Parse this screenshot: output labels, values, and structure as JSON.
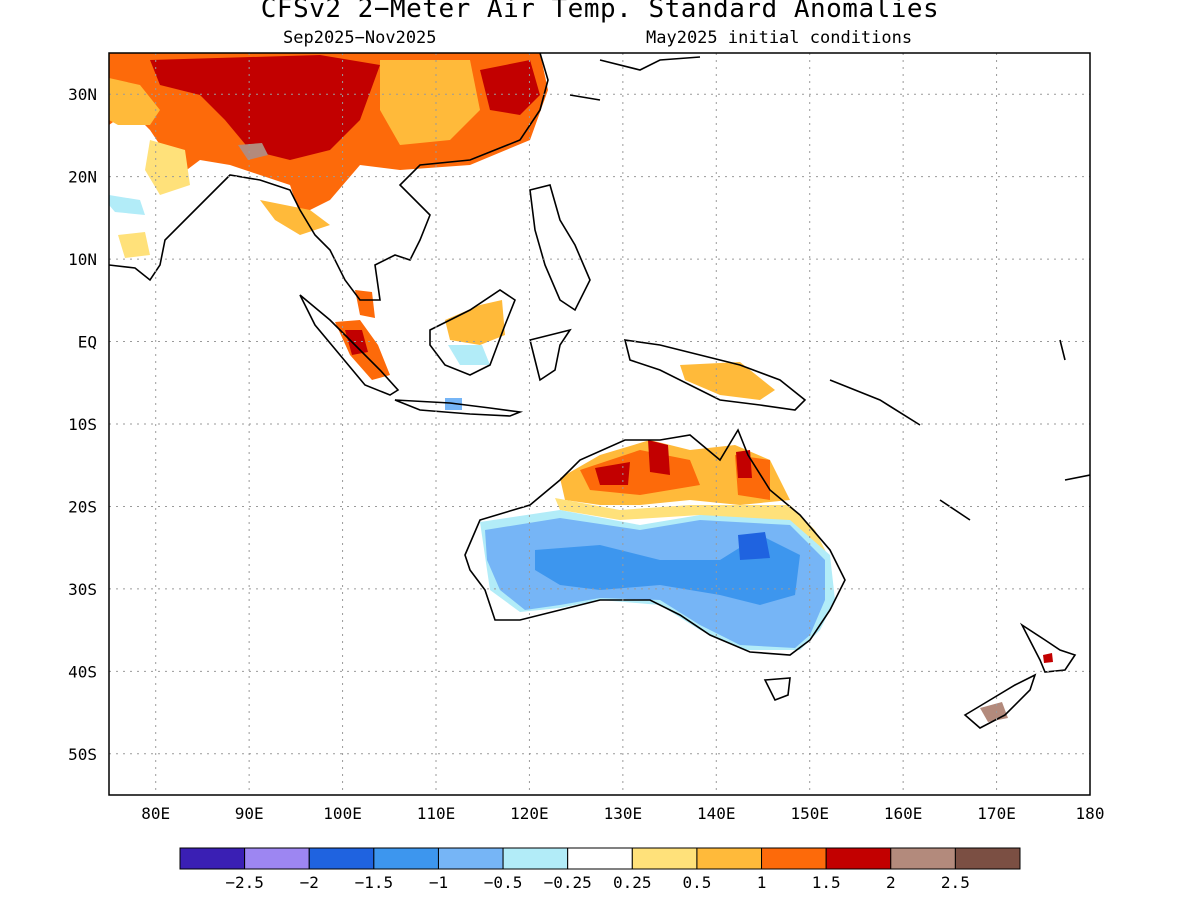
{
  "title": "CFSv2 2−Meter Air Temp. Standard Anomalies",
  "subtitle_left": "Sep2025−Nov2025",
  "subtitle_right": "May2025 initial conditions",
  "map": {
    "lon_range": [
      75,
      180
    ],
    "lat_range": [
      -55,
      35
    ],
    "grid": true,
    "lon_ticks": [
      {
        "value": 80,
        "label": "80E"
      },
      {
        "value": 90,
        "label": "90E"
      },
      {
        "value": 100,
        "label": "100E"
      },
      {
        "value": 110,
        "label": "110E"
      },
      {
        "value": 120,
        "label": "120E"
      },
      {
        "value": 130,
        "label": "130E"
      },
      {
        "value": 140,
        "label": "140E"
      },
      {
        "value": 150,
        "label": "150E"
      },
      {
        "value": 160,
        "label": "160E"
      },
      {
        "value": 170,
        "label": "170E"
      },
      {
        "value": 180,
        "label": "180"
      }
    ],
    "lat_ticks": [
      {
        "value": 30,
        "label": "30N"
      },
      {
        "value": 20,
        "label": "20N"
      },
      {
        "value": 10,
        "label": "10N"
      },
      {
        "value": 0,
        "label": "EQ"
      },
      {
        "value": -10,
        "label": "10S"
      },
      {
        "value": -20,
        "label": "20S"
      },
      {
        "value": -30,
        "label": "30S"
      },
      {
        "value": -40,
        "label": "40S"
      },
      {
        "value": -50,
        "label": "50S"
      }
    ]
  },
  "colorbar": {
    "colors": [
      "#3a1fb4",
      "#9d86f2",
      "#1f63e0",
      "#3d96ee",
      "#76b5f6",
      "#b2ecf8",
      "#ffffff",
      "#ffe17a",
      "#ffba3a",
      "#fd6a0a",
      "#c20000",
      "#b38a7c",
      "#7b4f43"
    ],
    "labels": [
      "−2.5",
      "−2",
      "−1.5",
      "−1",
      "−0.5",
      "−0.25",
      "0.25",
      "0.5",
      "1",
      "1.5",
      "2",
      "2.5"
    ]
  }
}
